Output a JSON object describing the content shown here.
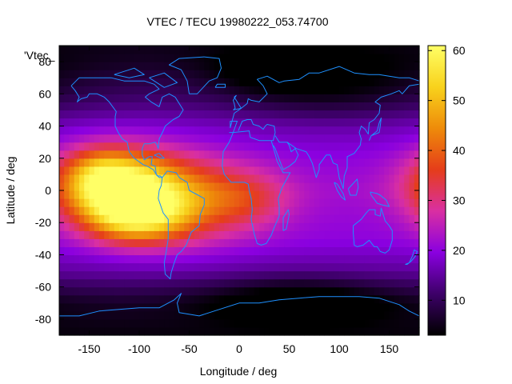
{
  "chart_data": {
    "type": "heatmap",
    "title": "VTEC / TECU 19980222_053.74700",
    "xlabel": "Longitude / deg",
    "ylabel": "Latitude / deg",
    "series_key": "'Vtec_",
    "xlim": [
      -180,
      180
    ],
    "ylim": [
      -90,
      90
    ],
    "x_ticks": [
      -150,
      -100,
      -50,
      0,
      50,
      100,
      150
    ],
    "y_ticks": [
      -80,
      -60,
      -40,
      -20,
      0,
      20,
      40,
      60,
      80
    ],
    "colorbar": {
      "range": [
        3,
        61
      ],
      "ticks": [
        10,
        20,
        30,
        40,
        50,
        60
      ]
    },
    "grid": false,
    "overlay": "coastlines",
    "colormap": [
      "#000000",
      "#3d0068",
      "#8a00e0",
      "#d92fa2",
      "#e53d1a",
      "#ee8b0a",
      "#f8d21c",
      "#ffff66"
    ],
    "coastline_color": "#1e90ff",
    "field_model": {
      "background_lat": [
        [
          -90,
          4
        ],
        [
          -70,
          6
        ],
        [
          -50,
          15
        ],
        [
          -30,
          20
        ],
        [
          0,
          22
        ],
        [
          20,
          20
        ],
        [
          40,
          17
        ],
        [
          60,
          11
        ],
        [
          80,
          6
        ],
        [
          90,
          5
        ]
      ],
      "blobs": [
        {
          "lon": -125,
          "lat": 5,
          "slon": 40,
          "slat": 15,
          "amp": 34
        },
        {
          "lon": -105,
          "lat": -15,
          "slon": 35,
          "slat": 12,
          "amp": 28
        },
        {
          "lon": -60,
          "lat": -5,
          "slon": 50,
          "slat": 18,
          "amp": 20
        },
        {
          "lon": 10,
          "lat": -5,
          "slon": 30,
          "slat": 12,
          "amp": 8
        },
        {
          "lon": -140,
          "lat": 10,
          "slon": 20,
          "slat": 10,
          "amp": 8
        }
      ],
      "dark_spots": [
        {
          "lon": 60,
          "lat": -68,
          "slon": 60,
          "slat": 10,
          "amp": 9
        },
        {
          "lon": 90,
          "lat": 65,
          "slon": 70,
          "slat": 15,
          "amp": 7
        },
        {
          "lon": 30,
          "lat": 75,
          "slon": 40,
          "slat": 10,
          "amp": 5
        }
      ]
    },
    "coastlines": [
      [
        [
          -168,
          65
        ],
        [
          -160,
          70
        ],
        [
          -140,
          70
        ],
        [
          -128,
          70
        ],
        [
          -115,
          68
        ],
        [
          -95,
          68
        ],
        [
          -85,
          66
        ],
        [
          -80,
          63
        ],
        [
          -90,
          60
        ],
        [
          -94,
          58
        ],
        [
          -88,
          55
        ],
        [
          -80,
          52
        ],
        [
          -77,
          58
        ],
        [
          -70,
          60
        ],
        [
          -64,
          58
        ],
        [
          -60,
          54
        ],
        [
          -56,
          50
        ],
        [
          -60,
          46
        ],
        [
          -66,
          44
        ],
        [
          -70,
          42
        ],
        [
          -74,
          40
        ],
        [
          -76,
          37
        ],
        [
          -80,
          32
        ],
        [
          -81,
          26
        ],
        [
          -82,
          28
        ],
        [
          -84,
          30
        ],
        [
          -90,
          29
        ],
        [
          -95,
          29
        ],
        [
          -97,
          26
        ],
        [
          -97,
          22
        ],
        [
          -95,
          19
        ],
        [
          -90,
          21
        ],
        [
          -87,
          21
        ],
        [
          -88,
          16
        ],
        [
          -84,
          15
        ],
        [
          -83,
          10
        ],
        [
          -80,
          8
        ],
        [
          -77,
          8
        ],
        [
          -79,
          9
        ],
        [
          -82,
          9
        ],
        [
          -86,
          13
        ],
        [
          -92,
          15
        ],
        [
          -96,
          16
        ],
        [
          -105,
          20
        ],
        [
          -110,
          24
        ],
        [
          -112,
          30
        ],
        [
          -117,
          32
        ],
        [
          -121,
          36
        ],
        [
          -124,
          40
        ],
        [
          -124,
          46
        ],
        [
          -123,
          49
        ],
        [
          -130,
          55
        ],
        [
          -135,
          58
        ],
        [
          -142,
          60
        ],
        [
          -150,
          60
        ],
        [
          -152,
          58
        ],
        [
          -158,
          57
        ],
        [
          -162,
          55
        ],
        [
          -160,
          58
        ],
        [
          -164,
          62
        ],
        [
          -168,
          65
        ]
      ],
      [
        [
          -77,
          8
        ],
        [
          -72,
          12
        ],
        [
          -63,
          11
        ],
        [
          -60,
          8
        ],
        [
          -52,
          5
        ],
        [
          -50,
          0
        ],
        [
          -44,
          -2
        ],
        [
          -35,
          -5
        ],
        [
          -35,
          -9
        ],
        [
          -39,
          -15
        ],
        [
          -40,
          -22
        ],
        [
          -48,
          -26
        ],
        [
          -53,
          -34
        ],
        [
          -58,
          -38
        ],
        [
          -62,
          -40
        ],
        [
          -65,
          -45
        ],
        [
          -68,
          -51
        ],
        [
          -69,
          -55
        ],
        [
          -74,
          -52
        ],
        [
          -75,
          -45
        ],
        [
          -73,
          -38
        ],
        [
          -71,
          -30
        ],
        [
          -71,
          -18
        ],
        [
          -76,
          -14
        ],
        [
          -81,
          -5
        ],
        [
          -80,
          0
        ],
        [
          -78,
          3
        ],
        [
          -77,
          8
        ]
      ],
      [
        [
          -10,
          36
        ],
        [
          -6,
          36
        ],
        [
          -2,
          43
        ],
        [
          -9,
          43
        ],
        [
          -9,
          39
        ],
        [
          -5,
          48
        ],
        [
          2,
          51
        ],
        [
          8,
          54
        ],
        [
          9,
          57
        ],
        [
          12,
          56
        ],
        [
          20,
          55
        ],
        [
          28,
          60
        ],
        [
          24,
          65
        ],
        [
          18,
          69
        ],
        [
          28,
          71
        ],
        [
          40,
          67
        ],
        [
          45,
          68
        ],
        [
          60,
          69
        ],
        [
          70,
          73
        ],
        [
          80,
          73
        ],
        [
          100,
          77
        ],
        [
          115,
          73
        ],
        [
          130,
          72
        ],
        [
          140,
          72
        ],
        [
          160,
          70
        ],
        [
          170,
          70
        ],
        [
          180,
          68
        ]
      ],
      [
        [
          -6,
          36
        ],
        [
          10,
          37
        ],
        [
          11,
          33
        ],
        [
          20,
          31
        ],
        [
          30,
          31
        ],
        [
          34,
          31
        ],
        [
          36,
          36
        ],
        [
          35,
          40
        ],
        [
          28,
          41
        ],
        [
          26,
          40
        ],
        [
          24,
          38
        ],
        [
          20,
          40
        ],
        [
          14,
          41
        ],
        [
          12,
          44
        ],
        [
          8,
          44
        ],
        [
          3,
          43
        ],
        [
          -1,
          37
        ]
      ],
      [
        [
          -6,
          36
        ],
        [
          -10,
          30
        ],
        [
          -16,
          24
        ],
        [
          -17,
          15
        ],
        [
          -15,
          10
        ],
        [
          -8,
          5
        ],
        [
          -3,
          5
        ],
        [
          5,
          5
        ],
        [
          9,
          4
        ],
        [
          10,
          0
        ],
        [
          12,
          -5
        ],
        [
          13,
          -12
        ],
        [
          12,
          -18
        ],
        [
          15,
          -27
        ],
        [
          18,
          -33
        ],
        [
          22,
          -34
        ],
        [
          27,
          -33
        ],
        [
          32,
          -28
        ],
        [
          35,
          -23
        ],
        [
          40,
          -16
        ],
        [
          40,
          -10
        ],
        [
          39,
          -5
        ],
        [
          43,
          2
        ],
        [
          51,
          11
        ],
        [
          44,
          11
        ],
        [
          38,
          18
        ],
        [
          34,
          27
        ],
        [
          32,
          31
        ]
      ],
      [
        [
          34,
          28
        ],
        [
          36,
          26
        ],
        [
          42,
          16
        ],
        [
          44,
          13
        ],
        [
          50,
          15
        ],
        [
          56,
          18
        ],
        [
          59,
          22
        ],
        [
          56,
          26
        ],
        [
          52,
          24
        ],
        [
          50,
          28
        ],
        [
          48,
          30
        ],
        [
          40,
          30
        ],
        [
          36,
          34
        ]
      ],
      [
        [
          48,
          30
        ],
        [
          57,
          26
        ],
        [
          62,
          25
        ],
        [
          67,
          24
        ],
        [
          70,
          21
        ],
        [
          73,
          17
        ],
        [
          77,
          8
        ],
        [
          80,
          13
        ],
        [
          80,
          16
        ],
        [
          87,
          22
        ],
        [
          91,
          22
        ],
        [
          94,
          17
        ],
        [
          98,
          16
        ],
        [
          100,
          8
        ],
        [
          103,
          3
        ],
        [
          104,
          1
        ],
        [
          105,
          9
        ],
        [
          108,
          14
        ],
        [
          108,
          21
        ],
        [
          115,
          23
        ],
        [
          121,
          28
        ],
        [
          122,
          32
        ],
        [
          120,
          36
        ],
        [
          122,
          40
        ],
        [
          126,
          38
        ],
        [
          129,
          35
        ],
        [
          130,
          42
        ],
        [
          135,
          44
        ],
        [
          140,
          48
        ],
        [
          141,
          53
        ],
        [
          136,
          55
        ],
        [
          142,
          58
        ],
        [
          152,
          60
        ],
        [
          160,
          62
        ],
        [
          163,
          60
        ],
        [
          170,
          65
        ],
        [
          180,
          66
        ]
      ],
      [
        [
          130,
          31
        ],
        [
          132,
          34
        ],
        [
          136,
          35
        ],
        [
          140,
          36
        ],
        [
          141,
          40
        ],
        [
          142,
          45
        ],
        [
          140,
          42
        ],
        [
          138,
          37
        ],
        [
          132,
          34
        ]
      ],
      [
        [
          114,
          -22
        ],
        [
          114,
          -26
        ],
        [
          115,
          -34
        ],
        [
          118,
          -35
        ],
        [
          124,
          -34
        ],
        [
          130,
          -31
        ],
        [
          135,
          -35
        ],
        [
          138,
          -35
        ],
        [
          141,
          -38
        ],
        [
          146,
          -39
        ],
        [
          150,
          -37
        ],
        [
          153,
          -31
        ],
        [
          153,
          -25
        ],
        [
          150,
          -22
        ],
        [
          146,
          -19
        ],
        [
          142,
          -11
        ],
        [
          141,
          -16
        ],
        [
          136,
          -15
        ],
        [
          136,
          -12
        ],
        [
          130,
          -12
        ],
        [
          127,
          -14
        ],
        [
          122,
          -18
        ],
        [
          118,
          -20
        ],
        [
          114,
          -22
        ]
      ],
      [
        [
          166,
          -46
        ],
        [
          170,
          -45
        ],
        [
          173,
          -41
        ],
        [
          175,
          -37
        ],
        [
          178,
          -38
        ],
        [
          176,
          -41
        ],
        [
          172,
          -44
        ],
        [
          168,
          -46
        ],
        [
          166,
          -46
        ]
      ],
      [
        [
          -180,
          -78
        ],
        [
          -160,
          -78
        ],
        [
          -140,
          -75
        ],
        [
          -120,
          -74
        ],
        [
          -100,
          -73
        ],
        [
          -80,
          -73
        ],
        [
          -65,
          -68
        ],
        [
          -58,
          -64
        ],
        [
          -62,
          -70
        ],
        [
          -60,
          -76
        ],
        [
          -40,
          -78
        ],
        [
          -20,
          -74
        ],
        [
          0,
          -70
        ],
        [
          20,
          -70
        ],
        [
          40,
          -68
        ],
        [
          60,
          -67
        ],
        [
          80,
          -66
        ],
        [
          100,
          -66
        ],
        [
          120,
          -66
        ],
        [
          140,
          -67
        ],
        [
          160,
          -71
        ],
        [
          170,
          -75
        ],
        [
          180,
          -78
        ]
      ],
      [
        [
          -50,
          60
        ],
        [
          -42,
          60
        ],
        [
          -30,
          68
        ],
        [
          -22,
          70
        ],
        [
          -18,
          76
        ],
        [
          -20,
          82
        ],
        [
          -35,
          83
        ],
        [
          -60,
          82
        ],
        [
          -70,
          78
        ],
        [
          -58,
          75
        ],
        [
          -52,
          68
        ],
        [
          -50,
          60
        ]
      ],
      [
        [
          -24,
          64
        ],
        [
          -14,
          64
        ],
        [
          -14,
          66
        ],
        [
          -22,
          66
        ],
        [
          -24,
          64
        ]
      ],
      [
        [
          -6,
          50
        ],
        [
          2,
          51
        ],
        [
          0,
          53
        ],
        [
          -3,
          56
        ],
        [
          -5,
          58
        ],
        [
          -3,
          59
        ],
        [
          -6,
          56
        ],
        [
          -5,
          54
        ],
        [
          -4,
          51
        ],
        [
          -6,
          50
        ]
      ],
      [
        [
          44,
          -25
        ],
        [
          47,
          -24
        ],
        [
          50,
          -15
        ],
        [
          49,
          -12
        ],
        [
          44,
          -17
        ],
        [
          44,
          -25
        ]
      ],
      [
        [
          95,
          5
        ],
        [
          98,
          4
        ],
        [
          104,
          -2
        ],
        [
          106,
          -6
        ],
        [
          102,
          -4
        ],
        [
          98,
          0
        ],
        [
          95,
          5
        ]
      ],
      [
        [
          109,
          1
        ],
        [
          115,
          5
        ],
        [
          118,
          7
        ],
        [
          119,
          2
        ],
        [
          117,
          -3
        ],
        [
          111,
          -3
        ],
        [
          109,
          1
        ]
      ],
      [
        [
          131,
          -1
        ],
        [
          138,
          -2
        ],
        [
          141,
          -3
        ],
        [
          147,
          -6
        ],
        [
          150,
          -10
        ],
        [
          143,
          -9
        ],
        [
          138,
          -8
        ],
        [
          132,
          -3
        ],
        [
          131,
          -1
        ]
      ],
      [
        [
          -85,
          22
        ],
        [
          -80,
          23
        ],
        [
          -75,
          20
        ],
        [
          -78,
          20
        ],
        [
          -85,
          22
        ]
      ],
      [
        [
          -90,
          70
        ],
        [
          -75,
          73
        ],
        [
          -62,
          67
        ],
        [
          -75,
          64
        ],
        [
          -90,
          70
        ]
      ],
      [
        [
          -125,
          72
        ],
        [
          -105,
          76
        ],
        [
          -95,
          72
        ],
        [
          -110,
          70
        ],
        [
          -125,
          72
        ]
      ]
    ]
  }
}
